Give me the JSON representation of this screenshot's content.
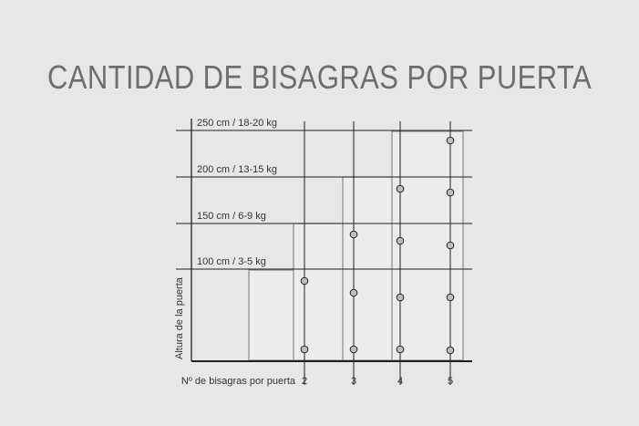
{
  "title": "CANTIDAD DE BISAGRAS POR PUERTA",
  "y_axis_label": "Altura de la puerta",
  "x_axis_label": "Nº de bisagras por puerta",
  "levels": [
    {
      "label": "100 cm / 3-5 kg"
    },
    {
      "label": "150 cm / 6-9 kg"
    },
    {
      "label": "200 cm / 13-15 kg"
    },
    {
      "label": "250 cm / 18-20 kg"
    }
  ],
  "hinge_counts": [
    "2",
    "3",
    "4",
    "5"
  ],
  "colors": {
    "background": "#e7e7e7",
    "door_fill": "#ececec",
    "hinge_fill": "#bdbdbd",
    "line": "#222222",
    "title": "#6e6e6e"
  }
}
